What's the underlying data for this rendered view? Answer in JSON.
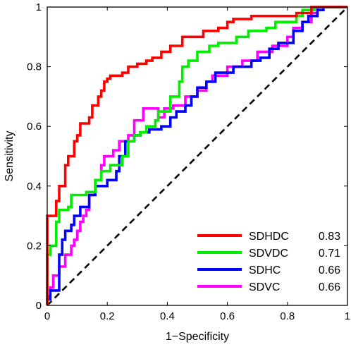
{
  "chart_data": {
    "type": "line",
    "xlabel": "1−Specificity",
    "ylabel": "Sensitivity",
    "xlim": [
      0,
      1
    ],
    "ylim": [
      0,
      1
    ],
    "x_ticks": [
      "0",
      "0.2",
      "0.4",
      "0.6",
      "0.8",
      "1"
    ],
    "y_ticks": [
      "0",
      "0.2",
      "0.4",
      "0.6",
      "0.8",
      "1"
    ],
    "grid": false,
    "legend_position": "bottom-right",
    "reference_line": {
      "style": "dashed",
      "color": "#000000",
      "points": [
        [
          0,
          0
        ],
        [
          1,
          1
        ]
      ]
    },
    "series": [
      {
        "name": "SDHDC",
        "auc": "0.83",
        "color": "#ff0000",
        "points": [
          [
            0,
            0
          ],
          [
            0,
            0.3
          ],
          [
            0.03,
            0.3
          ],
          [
            0.03,
            0.35
          ],
          [
            0.04,
            0.35
          ],
          [
            0.04,
            0.4
          ],
          [
            0.06,
            0.4
          ],
          [
            0.06,
            0.47
          ],
          [
            0.07,
            0.47
          ],
          [
            0.07,
            0.5
          ],
          [
            0.09,
            0.5
          ],
          [
            0.09,
            0.55
          ],
          [
            0.1,
            0.55
          ],
          [
            0.1,
            0.57
          ],
          [
            0.11,
            0.57
          ],
          [
            0.11,
            0.61
          ],
          [
            0.14,
            0.61
          ],
          [
            0.14,
            0.63
          ],
          [
            0.15,
            0.63
          ],
          [
            0.15,
            0.67
          ],
          [
            0.17,
            0.67
          ],
          [
            0.17,
            0.7
          ],
          [
            0.18,
            0.7
          ],
          [
            0.18,
            0.72
          ],
          [
            0.19,
            0.72
          ],
          [
            0.19,
            0.75
          ],
          [
            0.2,
            0.75
          ],
          [
            0.2,
            0.76
          ],
          [
            0.21,
            0.76
          ],
          [
            0.21,
            0.77
          ],
          [
            0.25,
            0.77
          ],
          [
            0.25,
            0.78
          ],
          [
            0.27,
            0.78
          ],
          [
            0.27,
            0.8
          ],
          [
            0.3,
            0.8
          ],
          [
            0.3,
            0.81
          ],
          [
            0.33,
            0.81
          ],
          [
            0.33,
            0.82
          ],
          [
            0.35,
            0.82
          ],
          [
            0.35,
            0.83
          ],
          [
            0.38,
            0.83
          ],
          [
            0.38,
            0.85
          ],
          [
            0.41,
            0.85
          ],
          [
            0.41,
            0.87
          ],
          [
            0.45,
            0.87
          ],
          [
            0.45,
            0.9
          ],
          [
            0.52,
            0.9
          ],
          [
            0.52,
            0.92
          ],
          [
            0.57,
            0.92
          ],
          [
            0.57,
            0.93
          ],
          [
            0.6,
            0.93
          ],
          [
            0.6,
            0.95
          ],
          [
            0.62,
            0.95
          ],
          [
            0.62,
            0.96
          ],
          [
            0.68,
            0.96
          ],
          [
            0.68,
            0.97
          ],
          [
            0.83,
            0.97
          ],
          [
            0.83,
            0.98
          ],
          [
            0.88,
            0.98
          ],
          [
            0.88,
            1
          ],
          [
            1,
            1
          ]
        ]
      },
      {
        "name": "SDVDC",
        "auc": "0.71",
        "color": "#00ee00",
        "points": [
          [
            0,
            0
          ],
          [
            0,
            0.17
          ],
          [
            0.01,
            0.17
          ],
          [
            0.01,
            0.2
          ],
          [
            0.03,
            0.2
          ],
          [
            0.03,
            0.28
          ],
          [
            0.04,
            0.28
          ],
          [
            0.04,
            0.32
          ],
          [
            0.07,
            0.32
          ],
          [
            0.07,
            0.33
          ],
          [
            0.08,
            0.33
          ],
          [
            0.08,
            0.37
          ],
          [
            0.13,
            0.37
          ],
          [
            0.13,
            0.38
          ],
          [
            0.16,
            0.38
          ],
          [
            0.16,
            0.42
          ],
          [
            0.18,
            0.42
          ],
          [
            0.18,
            0.45
          ],
          [
            0.21,
            0.45
          ],
          [
            0.21,
            0.47
          ],
          [
            0.25,
            0.47
          ],
          [
            0.25,
            0.5
          ],
          [
            0.27,
            0.5
          ],
          [
            0.27,
            0.55
          ],
          [
            0.29,
            0.55
          ],
          [
            0.29,
            0.57
          ],
          [
            0.31,
            0.57
          ],
          [
            0.31,
            0.58
          ],
          [
            0.33,
            0.58
          ],
          [
            0.33,
            0.6
          ],
          [
            0.36,
            0.6
          ],
          [
            0.36,
            0.62
          ],
          [
            0.37,
            0.62
          ],
          [
            0.37,
            0.65
          ],
          [
            0.41,
            0.65
          ],
          [
            0.41,
            0.7
          ],
          [
            0.44,
            0.7
          ],
          [
            0.44,
            0.75
          ],
          [
            0.45,
            0.75
          ],
          [
            0.45,
            0.8
          ],
          [
            0.47,
            0.8
          ],
          [
            0.47,
            0.82
          ],
          [
            0.5,
            0.82
          ],
          [
            0.5,
            0.85
          ],
          [
            0.54,
            0.85
          ],
          [
            0.54,
            0.87
          ],
          [
            0.57,
            0.87
          ],
          [
            0.57,
            0.88
          ],
          [
            0.63,
            0.88
          ],
          [
            0.63,
            0.9
          ],
          [
            0.67,
            0.9
          ],
          [
            0.67,
            0.92
          ],
          [
            0.73,
            0.92
          ],
          [
            0.73,
            0.93
          ],
          [
            0.76,
            0.93
          ],
          [
            0.76,
            0.95
          ],
          [
            0.83,
            0.95
          ],
          [
            0.83,
            0.97
          ],
          [
            0.85,
            0.97
          ],
          [
            0.85,
            0.99
          ],
          [
            0.89,
            0.99
          ],
          [
            0.89,
            1
          ],
          [
            1,
            1
          ]
        ]
      },
      {
        "name": "SDHC",
        "auc": "0.66",
        "color": "#0000ff",
        "points": [
          [
            0,
            0
          ],
          [
            0,
            0.02
          ],
          [
            0.01,
            0.02
          ],
          [
            0.01,
            0.05
          ],
          [
            0.04,
            0.05
          ],
          [
            0.04,
            0.17
          ],
          [
            0.05,
            0.17
          ],
          [
            0.05,
            0.22
          ],
          [
            0.06,
            0.22
          ],
          [
            0.06,
            0.25
          ],
          [
            0.08,
            0.25
          ],
          [
            0.08,
            0.27
          ],
          [
            0.09,
            0.27
          ],
          [
            0.09,
            0.3
          ],
          [
            0.11,
            0.3
          ],
          [
            0.11,
            0.33
          ],
          [
            0.14,
            0.33
          ],
          [
            0.14,
            0.37
          ],
          [
            0.16,
            0.37
          ],
          [
            0.16,
            0.4
          ],
          [
            0.2,
            0.4
          ],
          [
            0.2,
            0.42
          ],
          [
            0.23,
            0.42
          ],
          [
            0.23,
            0.45
          ],
          [
            0.24,
            0.45
          ],
          [
            0.24,
            0.5
          ],
          [
            0.26,
            0.5
          ],
          [
            0.26,
            0.55
          ],
          [
            0.29,
            0.55
          ],
          [
            0.29,
            0.57
          ],
          [
            0.31,
            0.57
          ],
          [
            0.31,
            0.58
          ],
          [
            0.34,
            0.58
          ],
          [
            0.34,
            0.59
          ],
          [
            0.38,
            0.59
          ],
          [
            0.38,
            0.6
          ],
          [
            0.41,
            0.6
          ],
          [
            0.41,
            0.63
          ],
          [
            0.43,
            0.63
          ],
          [
            0.43,
            0.65
          ],
          [
            0.46,
            0.65
          ],
          [
            0.46,
            0.67
          ],
          [
            0.48,
            0.67
          ],
          [
            0.48,
            0.7
          ],
          [
            0.5,
            0.7
          ],
          [
            0.5,
            0.73
          ],
          [
            0.53,
            0.73
          ],
          [
            0.53,
            0.75
          ],
          [
            0.56,
            0.75
          ],
          [
            0.56,
            0.78
          ],
          [
            0.62,
            0.78
          ],
          [
            0.62,
            0.8
          ],
          [
            0.68,
            0.8
          ],
          [
            0.68,
            0.82
          ],
          [
            0.71,
            0.82
          ],
          [
            0.71,
            0.83
          ],
          [
            0.74,
            0.83
          ],
          [
            0.74,
            0.86
          ],
          [
            0.77,
            0.86
          ],
          [
            0.77,
            0.88
          ],
          [
            0.82,
            0.88
          ],
          [
            0.82,
            0.92
          ],
          [
            0.85,
            0.92
          ],
          [
            0.85,
            0.95
          ],
          [
            0.87,
            0.95
          ],
          [
            0.87,
            0.97
          ],
          [
            0.9,
            0.97
          ],
          [
            0.9,
            0.99
          ],
          [
            0.92,
            0.99
          ],
          [
            0.92,
            1
          ],
          [
            1,
            1
          ]
        ]
      },
      {
        "name": "SDVC",
        "auc": "0.66",
        "color": "#ff00ff",
        "points": [
          [
            0,
            0
          ],
          [
            0,
            0.03
          ],
          [
            0.01,
            0.03
          ],
          [
            0.01,
            0.06
          ],
          [
            0.02,
            0.06
          ],
          [
            0.02,
            0.1
          ],
          [
            0.04,
            0.1
          ],
          [
            0.04,
            0.13
          ],
          [
            0.06,
            0.13
          ],
          [
            0.06,
            0.17
          ],
          [
            0.08,
            0.17
          ],
          [
            0.08,
            0.2
          ],
          [
            0.09,
            0.2
          ],
          [
            0.09,
            0.22
          ],
          [
            0.1,
            0.22
          ],
          [
            0.1,
            0.25
          ],
          [
            0.11,
            0.25
          ],
          [
            0.11,
            0.28
          ],
          [
            0.12,
            0.28
          ],
          [
            0.12,
            0.3
          ],
          [
            0.13,
            0.3
          ],
          [
            0.13,
            0.32
          ],
          [
            0.14,
            0.32
          ],
          [
            0.14,
            0.37
          ],
          [
            0.16,
            0.37
          ],
          [
            0.16,
            0.42
          ],
          [
            0.18,
            0.42
          ],
          [
            0.18,
            0.47
          ],
          [
            0.19,
            0.47
          ],
          [
            0.19,
            0.5
          ],
          [
            0.22,
            0.5
          ],
          [
            0.22,
            0.52
          ],
          [
            0.24,
            0.52
          ],
          [
            0.24,
            0.55
          ],
          [
            0.27,
            0.55
          ],
          [
            0.27,
            0.57
          ],
          [
            0.29,
            0.57
          ],
          [
            0.29,
            0.62
          ],
          [
            0.32,
            0.62
          ],
          [
            0.32,
            0.66
          ],
          [
            0.37,
            0.66
          ],
          [
            0.37,
            0.63
          ],
          [
            0.39,
            0.63
          ],
          [
            0.39,
            0.66
          ],
          [
            0.42,
            0.66
          ],
          [
            0.42,
            0.67
          ],
          [
            0.46,
            0.67
          ],
          [
            0.46,
            0.7
          ],
          [
            0.5,
            0.7
          ],
          [
            0.5,
            0.72
          ],
          [
            0.53,
            0.72
          ],
          [
            0.53,
            0.75
          ],
          [
            0.55,
            0.75
          ],
          [
            0.55,
            0.77
          ],
          [
            0.6,
            0.77
          ],
          [
            0.6,
            0.8
          ],
          [
            0.65,
            0.8
          ],
          [
            0.65,
            0.82
          ],
          [
            0.7,
            0.82
          ],
          [
            0.7,
            0.85
          ],
          [
            0.75,
            0.85
          ],
          [
            0.75,
            0.87
          ],
          [
            0.8,
            0.87
          ],
          [
            0.8,
            0.9
          ],
          [
            0.82,
            0.9
          ],
          [
            0.82,
            0.93
          ],
          [
            0.85,
            0.93
          ],
          [
            0.85,
            0.95
          ],
          [
            0.88,
            0.95
          ],
          [
            0.88,
            0.98
          ],
          [
            0.9,
            0.98
          ],
          [
            0.9,
            1
          ],
          [
            1,
            1
          ]
        ]
      }
    ]
  }
}
